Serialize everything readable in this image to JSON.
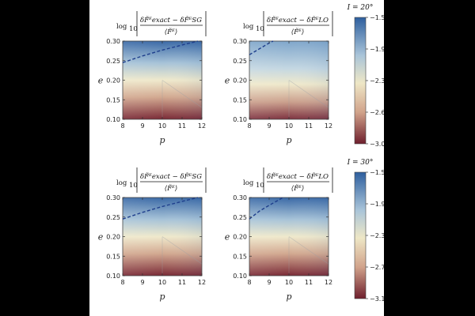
{
  "colors": {
    "blue": "#2e5f9e",
    "light": "#eee7c6",
    "red": "#6e1f2d",
    "dash": "#1e3e8c"
  },
  "chart_data": [
    {
      "type": "heatmap",
      "group": "I = 20°",
      "title": "log10 |δF̃E exact − δF̃E SG / ⟨F̃E⟩|",
      "xlabel": "p",
      "ylabel": "e",
      "xlim": [
        8,
        12
      ],
      "ylim": [
        0.1,
        0.3
      ],
      "xticks": [
        "8",
        "9",
        "10",
        "11",
        "12"
      ],
      "yticks": [
        "0.10",
        "0.15",
        "0.20",
        "0.25",
        "0.30"
      ],
      "contour": [
        [
          8,
          0.245
        ],
        [
          9,
          0.262
        ],
        [
          10,
          0.277
        ],
        [
          11,
          0.29
        ],
        [
          11.8,
          0.3
        ]
      ]
    },
    {
      "type": "heatmap",
      "group": "I = 20°",
      "title": "log10 |δF̃E exact − δF̃E LO / ⟨F̃E⟩|",
      "xlabel": "p",
      "ylabel": "e",
      "xlim": [
        8,
        12
      ],
      "ylim": [
        0.1,
        0.3
      ],
      "xticks": [
        "8",
        "9",
        "10",
        "11",
        "12"
      ],
      "yticks": [
        "0.10",
        "0.15",
        "0.20",
        "0.25",
        "0.30"
      ],
      "contour": [
        [
          8,
          0.265
        ],
        [
          8.5,
          0.28
        ],
        [
          9,
          0.295
        ],
        [
          9.2,
          0.3
        ]
      ]
    },
    {
      "type": "heatmap",
      "group": "I = 30°",
      "title": "log10 |δF̃E exact − δF̃E SG / ⟨F̃E⟩|",
      "xlabel": "p",
      "ylabel": "e",
      "xlim": [
        8,
        12
      ],
      "ylim": [
        0.1,
        0.3
      ],
      "xticks": [
        "8",
        "9",
        "10",
        "11",
        "12"
      ],
      "yticks": [
        "0.10",
        "0.15",
        "0.20",
        "0.25",
        "0.30"
      ],
      "contour": [
        [
          8,
          0.245
        ],
        [
          9,
          0.262
        ],
        [
          10,
          0.277
        ],
        [
          11,
          0.29
        ],
        [
          11.8,
          0.3
        ]
      ]
    },
    {
      "type": "heatmap",
      "group": "I = 30°",
      "title": "log10 |δF̃E exact − δF̃E LO / ⟨F̃E⟩|",
      "xlabel": "p",
      "ylabel": "e",
      "xlim": [
        8,
        12
      ],
      "ylim": [
        0.1,
        0.3
      ],
      "xticks": [
        "8",
        "9",
        "10",
        "11",
        "12"
      ],
      "yticks": [
        "0.10",
        "0.15",
        "0.20",
        "0.25",
        "0.30"
      ],
      "contour": [
        [
          8,
          0.245
        ],
        [
          8.5,
          0.265
        ],
        [
          9,
          0.28
        ],
        [
          9.7,
          0.3
        ]
      ]
    }
  ],
  "colorbars": [
    {
      "label": "I = 20°",
      "ticks": [
        "−1.53",
        "−1.92",
        "−2.30",
        "−2.69",
        "−3.08"
      ]
    },
    {
      "label": "I = 30°",
      "ticks": [
        "−1.53",
        "−1.94",
        "−2.36",
        "−2.77",
        "−3.19"
      ]
    }
  ]
}
